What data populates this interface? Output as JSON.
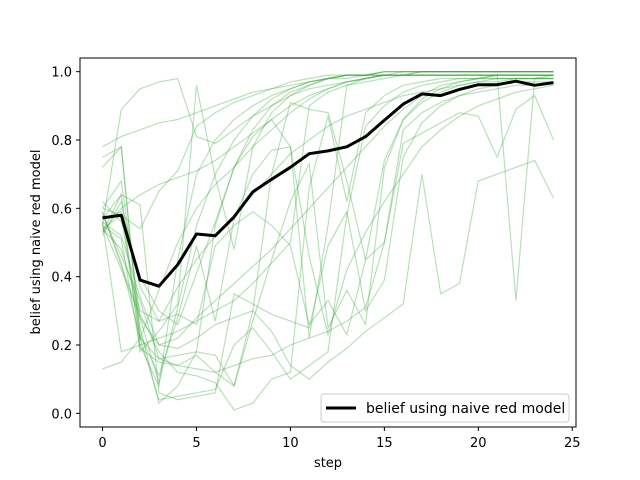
{
  "chart_data": {
    "type": "line",
    "title": "",
    "xlabel": "step",
    "ylabel": "belief using naive red model",
    "xlim": [
      -1.2,
      25.2
    ],
    "ylim": [
      -0.04,
      1.04
    ],
    "xticks": [
      0,
      5,
      10,
      15,
      20,
      25
    ],
    "yticks": [
      0.0,
      0.2,
      0.4,
      0.6,
      0.8,
      1.0
    ],
    "grid": false,
    "legend": {
      "position": "bottom-right",
      "entries": [
        "belief using naive red model"
      ]
    },
    "colors": {
      "trajectories": "#2ca02c",
      "mean": "#000000"
    },
    "mean_series": {
      "name": "belief using naive red model",
      "x": [
        0,
        1,
        2,
        3,
        4,
        5,
        6,
        7,
        8,
        9,
        10,
        11,
        12,
        13,
        14,
        15,
        16,
        17,
        18,
        19,
        20,
        21,
        22,
        23,
        24
      ],
      "y": [
        0.572,
        0.58,
        0.39,
        0.372,
        0.435,
        0.525,
        0.52,
        0.575,
        0.648,
        0.685,
        0.72,
        0.76,
        0.768,
        0.78,
        0.81,
        0.858,
        0.905,
        0.935,
        0.93,
        0.948,
        0.962,
        0.962,
        0.972,
        0.96,
        0.968
      ]
    },
    "trajectories": [
      [
        0.13,
        0.15,
        0.22,
        0.36,
        0.5,
        0.6,
        0.67,
        0.72,
        0.78,
        0.83,
        0.88,
        0.92,
        0.95,
        0.97,
        0.98,
        0.99,
        0.99,
        1.0,
        1.0,
        1.0,
        1.0,
        1.0,
        1.0,
        1.0,
        1.0
      ],
      [
        0.53,
        0.6,
        0.64,
        0.67,
        0.69,
        0.71,
        0.74,
        0.78,
        0.82,
        0.86,
        0.9,
        0.93,
        0.95,
        0.97,
        0.98,
        0.99,
        0.99,
        1.0,
        1.0,
        1.0,
        1.0,
        1.0,
        1.0,
        1.0,
        1.0
      ],
      [
        0.75,
        0.78,
        0.2,
        0.08,
        0.45,
        0.7,
        0.8,
        0.86,
        0.9,
        0.93,
        0.95,
        0.97,
        0.98,
        0.99,
        0.99,
        1.0,
        1.0,
        1.0,
        1.0,
        1.0,
        1.0,
        1.0,
        1.0,
        1.0,
        1.0
      ],
      [
        0.6,
        0.68,
        0.28,
        0.09,
        0.31,
        0.55,
        0.7,
        0.8,
        0.87,
        0.92,
        0.95,
        0.97,
        0.98,
        0.99,
        0.99,
        1.0,
        1.0,
        1.0,
        1.0,
        1.0,
        1.0,
        1.0,
        1.0,
        1.0,
        1.0
      ],
      [
        0.57,
        0.59,
        0.25,
        0.03,
        0.08,
        0.18,
        0.55,
        0.72,
        0.83,
        0.9,
        0.94,
        0.96,
        0.98,
        0.99,
        0.99,
        1.0,
        1.0,
        1.0,
        1.0,
        1.0,
        1.0,
        1.0,
        1.0,
        1.0,
        1.0
      ],
      [
        0.53,
        0.64,
        0.18,
        0.24,
        0.32,
        0.96,
        0.69,
        0.48,
        0.78,
        0.88,
        0.93,
        0.96,
        0.98,
        0.99,
        0.99,
        0.99,
        1.0,
        1.0,
        1.0,
        1.0,
        1.0,
        1.0,
        1.0,
        1.0,
        1.0
      ],
      [
        0.78,
        0.81,
        0.83,
        0.85,
        0.86,
        0.88,
        0.9,
        0.92,
        0.94,
        0.95,
        0.96,
        0.97,
        0.98,
        0.98,
        0.99,
        0.99,
        0.99,
        0.99,
        0.99,
        0.99,
        0.99,
        0.99,
        0.99,
        0.99,
        0.99
      ],
      [
        0.55,
        0.89,
        0.95,
        0.97,
        0.98,
        0.81,
        0.79,
        0.83,
        0.87,
        0.9,
        0.93,
        0.95,
        0.96,
        0.97,
        0.98,
        0.99,
        0.99,
        0.99,
        0.99,
        0.99,
        0.99,
        0.99,
        0.99,
        0.99,
        0.99
      ],
      [
        0.54,
        0.58,
        0.54,
        0.65,
        0.71,
        0.84,
        0.88,
        0.91,
        0.93,
        0.95,
        0.97,
        0.98,
        0.99,
        0.99,
        0.99,
        0.99,
        0.99,
        0.99,
        0.99,
        0.99,
        0.99,
        0.99,
        0.99,
        0.99,
        0.99
      ],
      [
        0.72,
        0.78,
        0.23,
        0.11,
        0.28,
        0.49,
        0.27,
        0.57,
        0.7,
        0.77,
        0.78,
        0.22,
        0.55,
        0.96,
        0.98,
        0.99,
        0.99,
        0.99,
        0.99,
        0.99,
        0.99,
        0.99,
        0.99,
        0.99,
        0.99
      ],
      [
        0.56,
        0.18,
        0.2,
        0.22,
        0.24,
        0.27,
        0.3,
        0.33,
        0.38,
        0.44,
        0.5,
        0.9,
        0.94,
        0.96,
        0.97,
        0.98,
        0.99,
        0.99,
        0.99,
        0.99,
        0.99,
        0.99,
        0.99,
        0.99,
        0.99
      ],
      [
        0.6,
        0.58,
        0.22,
        0.04,
        0.05,
        0.06,
        0.07,
        0.2,
        0.25,
        0.18,
        0.1,
        0.14,
        0.18,
        0.58,
        0.84,
        0.9,
        0.94,
        0.96,
        0.97,
        0.98,
        0.98,
        0.99,
        0.99,
        0.99,
        0.99
      ],
      [
        0.55,
        0.51,
        0.19,
        0.15,
        0.14,
        0.17,
        0.12,
        0.08,
        0.27,
        0.45,
        0.62,
        0.73,
        0.25,
        0.36,
        0.26,
        0.72,
        0.86,
        0.92,
        0.95,
        0.97,
        0.98,
        0.98,
        0.98,
        0.98,
        0.98
      ],
      [
        0.52,
        0.62,
        0.37,
        0.27,
        0.29,
        0.26,
        0.49,
        0.55,
        0.59,
        0.55,
        0.49,
        0.26,
        0.33,
        0.23,
        0.45,
        0.74,
        0.86,
        0.91,
        0.94,
        0.96,
        0.97,
        0.98,
        0.98,
        0.98,
        0.98
      ],
      [
        0.59,
        0.43,
        0.29,
        0.18,
        0.12,
        0.11,
        0.09,
        0.01,
        0.03,
        0.1,
        0.12,
        0.66,
        0.87,
        0.62,
        0.88,
        0.93,
        0.96,
        0.97,
        0.98,
        0.98,
        0.98,
        0.98,
        0.98,
        0.98,
        0.98
      ],
      [
        0.57,
        0.64,
        0.61,
        0.06,
        0.04,
        0.05,
        0.06,
        0.35,
        0.32,
        0.29,
        0.27,
        0.25,
        0.49,
        0.59,
        0.3,
        0.39,
        0.75,
        0.85,
        0.9,
        0.93,
        0.95,
        0.96,
        0.97,
        0.97,
        0.97
      ],
      [
        0.62,
        0.56,
        0.4,
        0.3,
        0.26,
        0.41,
        0.56,
        0.72,
        0.81,
        0.86,
        0.78,
        0.46,
        0.23,
        0.42,
        0.53,
        0.62,
        0.7,
        0.78,
        0.83,
        0.87,
        0.9,
        0.92,
        0.94,
        0.95,
        0.96
      ],
      [
        0.59,
        0.44,
        0.22,
        0.16,
        0.17,
        0.18,
        0.17,
        0.08,
        0.3,
        0.7,
        0.91,
        0.89,
        0.88,
        0.68,
        0.45,
        0.5,
        0.83,
        0.88,
        0.91,
        0.93,
        0.94,
        0.95,
        0.96,
        0.96,
        0.97
      ],
      [
        0.54,
        0.48,
        0.3,
        0.27,
        0.37,
        0.45,
        0.52,
        0.58,
        0.64,
        0.7,
        0.76,
        0.8,
        0.84,
        0.87,
        0.89,
        0.91,
        0.93,
        0.94,
        0.95,
        0.96,
        0.97,
        0.97,
        0.98,
        0.98,
        0.98
      ],
      [
        0.58,
        0.46,
        0.33,
        0.16,
        0.14,
        0.13,
        0.12,
        0.14,
        0.16,
        0.17,
        0.2,
        0.22,
        0.24,
        0.27,
        0.31,
        0.5,
        0.79,
        0.82,
        0.85,
        0.88,
        0.87,
        0.75,
        0.89,
        0.93,
        0.8
      ],
      [
        0.55,
        0.42,
        0.28,
        0.2,
        0.19,
        0.22,
        0.26,
        0.28,
        0.3,
        0.24,
        0.14,
        0.1,
        0.15,
        0.19,
        0.24,
        0.28,
        0.32,
        0.7,
        0.35,
        0.38,
        0.68,
        0.7,
        0.72,
        0.74,
        0.63
      ],
      [
        0.56,
        0.52,
        0.34,
        0.2,
        0.22,
        0.28,
        0.33,
        0.38,
        0.43,
        0.48,
        0.54,
        0.6,
        0.66,
        0.72,
        0.78,
        0.84,
        0.89,
        0.93,
        0.96,
        0.97,
        0.98,
        0.99,
        0.33,
        0.98,
        0.99
      ]
    ]
  }
}
